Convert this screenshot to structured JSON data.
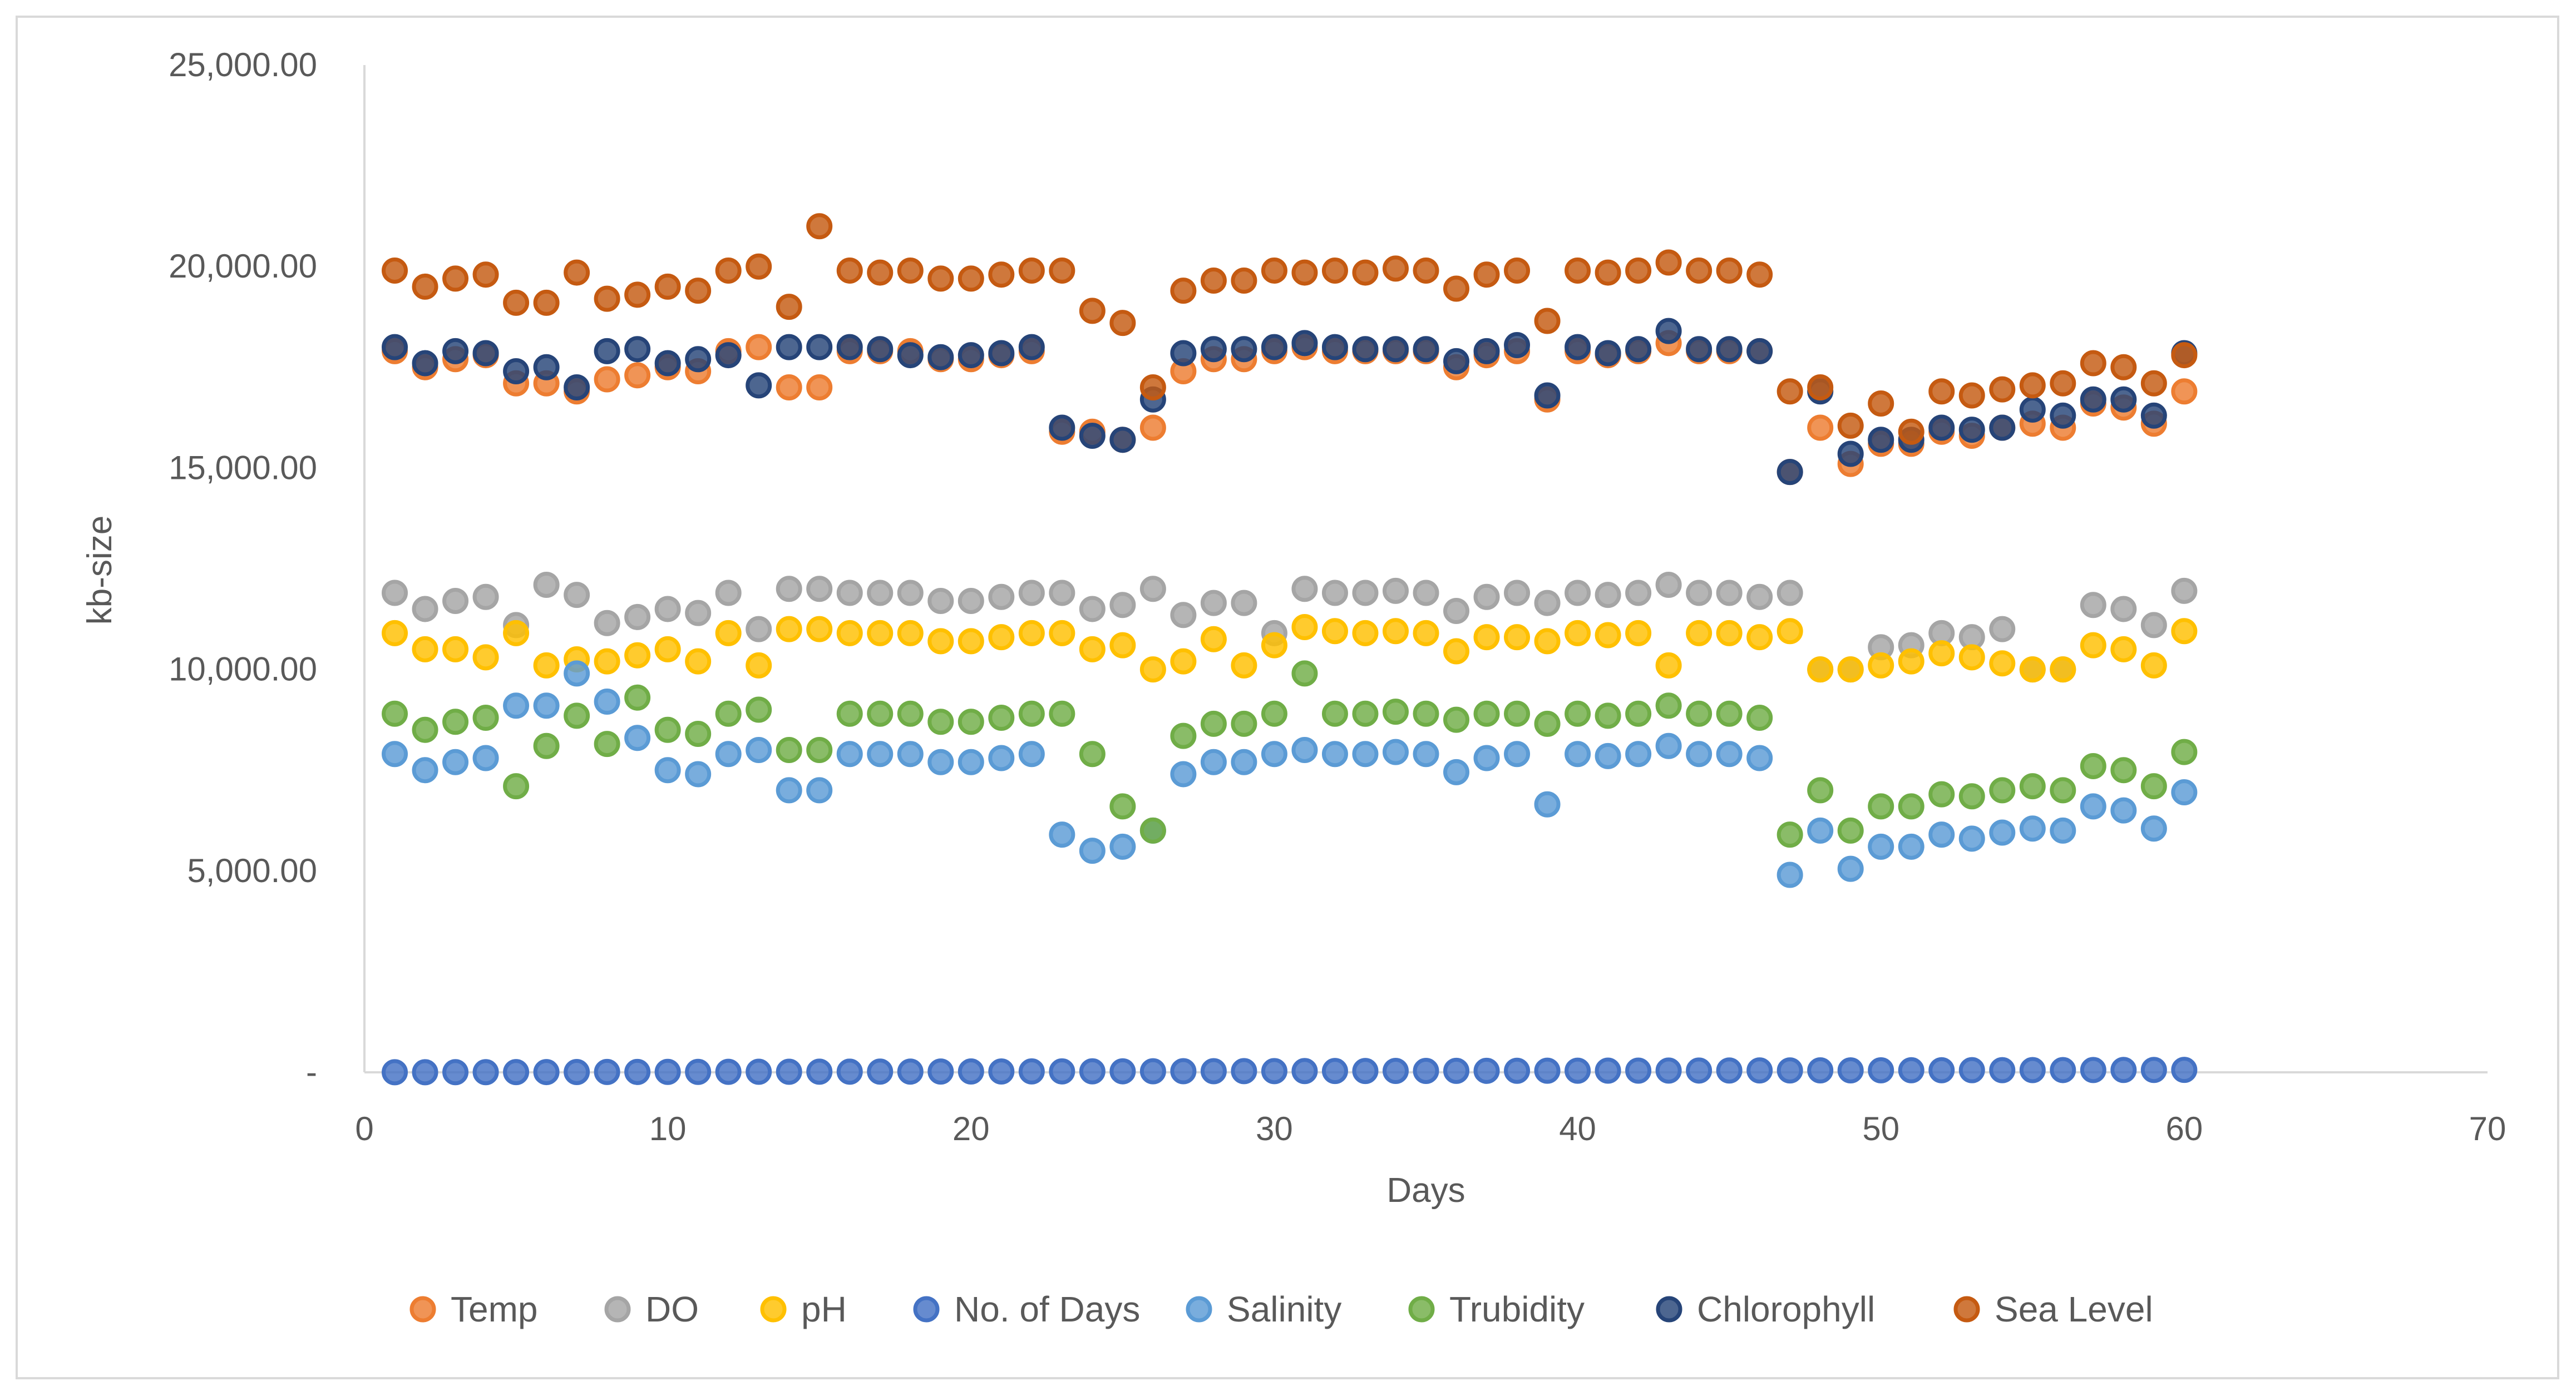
{
  "chart_data": {
    "type": "scatter",
    "title": "",
    "xlabel": "Days",
    "ylabel": "kb-size",
    "xlim": [
      0,
      70
    ],
    "ylim": [
      0,
      25000
    ],
    "x_ticks": [
      "0",
      "10",
      "20",
      "30",
      "40",
      "50",
      "60",
      "70"
    ],
    "y_ticks": [
      "-",
      "5,000.00",
      "10,000.00",
      "15,000.00",
      "20,000.00",
      "25,000.00"
    ],
    "grid": false,
    "legend_position": "bottom",
    "x": [
      1,
      2,
      3,
      4,
      5,
      6,
      7,
      8,
      9,
      10,
      11,
      12,
      13,
      14,
      15,
      16,
      17,
      18,
      19,
      20,
      21,
      22,
      23,
      24,
      25,
      26,
      27,
      28,
      29,
      30,
      31,
      32,
      33,
      34,
      35,
      36,
      37,
      38,
      39,
      40,
      41,
      42,
      43,
      44,
      45,
      46,
      47,
      48,
      49,
      50,
      51,
      52,
      53,
      54,
      55,
      56,
      57,
      58,
      59,
      60
    ],
    "series": [
      {
        "name": "Temp",
        "color": "#ED7D31",
        "values": [
          17900,
          17500,
          17700,
          17800,
          17100,
          17100,
          16900,
          17200,
          17300,
          17500,
          17400,
          17900,
          18000,
          17000,
          17000,
          17900,
          17900,
          17900,
          17700,
          17700,
          17800,
          17900,
          15900,
          15900,
          15700,
          16000,
          17400,
          17700,
          17700,
          17900,
          18000,
          17900,
          17900,
          17900,
          17900,
          17500,
          17800,
          17900,
          16700,
          17900,
          17800,
          17900,
          18100,
          17900,
          17900,
          17900,
          14900,
          16000,
          15100,
          15600,
          15600,
          15900,
          15800,
          16000,
          16100,
          16000,
          16600,
          16500,
          16100,
          16900
        ]
      },
      {
        "name": "DO",
        "color": "#A5A5A5",
        "values": [
          11900,
          11500,
          11700,
          11800,
          11100,
          12100,
          11850,
          11150,
          11300,
          11500,
          11400,
          11900,
          11000,
          12000,
          12000,
          11900,
          11900,
          11900,
          11700,
          11700,
          11800,
          11900,
          11900,
          11500,
          11600,
          12000,
          11350,
          11650,
          11650,
          10900,
          12000,
          11900,
          11900,
          11950,
          11900,
          11450,
          11800,
          11900,
          11650,
          11900,
          11850,
          11900,
          12100,
          11900,
          11900,
          11800,
          11900,
          10000,
          10000,
          10550,
          10600,
          10900,
          10800,
          11000,
          10000,
          10000,
          11600,
          11500,
          11100,
          11950
        ]
      },
      {
        "name": "pH",
        "color": "#FFC000",
        "values": [
          10900,
          10500,
          10500,
          10300,
          10900,
          10100,
          10250,
          10200,
          10350,
          10500,
          10200,
          10900,
          10100,
          11000,
          11000,
          10900,
          10900,
          10900,
          10700,
          10700,
          10800,
          10900,
          10900,
          10500,
          10600,
          10000,
          10200,
          10750,
          10100,
          10600,
          11050,
          10950,
          10900,
          10950,
          10900,
          10450,
          10800,
          10800,
          10700,
          10900,
          10850,
          10900,
          10100,
          10900,
          10900,
          10800,
          10950,
          10000,
          10000,
          10100,
          10200,
          10400,
          10300,
          10150,
          10000,
          10000,
          10600,
          10500,
          10100,
          10950
        ]
      },
      {
        "name": "No. of Days",
        "color": "#4472C4",
        "values": [
          1,
          2,
          3,
          4,
          5,
          6,
          7,
          8,
          9,
          10,
          11,
          12,
          13,
          14,
          15,
          16,
          17,
          18,
          19,
          20,
          21,
          22,
          23,
          24,
          25,
          26,
          27,
          28,
          29,
          30,
          31,
          32,
          33,
          34,
          35,
          36,
          37,
          38,
          39,
          40,
          41,
          42,
          43,
          44,
          45,
          46,
          47,
          48,
          49,
          50,
          51,
          52,
          53,
          54,
          55,
          56,
          57,
          58,
          59,
          60
        ]
      },
      {
        "name": "Salinity",
        "color": "#5B9BD5",
        "values": [
          7900,
          7500,
          7700,
          7800,
          9100,
          9100,
          9900,
          9200,
          8300,
          7500,
          7400,
          7900,
          8000,
          7000,
          7000,
          7900,
          7900,
          7900,
          7700,
          7700,
          7800,
          7900,
          5900,
          5500,
          5600,
          6000,
          7400,
          7700,
          7700,
          7900,
          8000,
          7900,
          7900,
          7950,
          7900,
          7450,
          7800,
          7900,
          6650,
          7900,
          7850,
          7900,
          8100,
          7900,
          7900,
          7800,
          4900,
          6000,
          5050,
          5600,
          5600,
          5900,
          5800,
          5950,
          6050,
          6000,
          6600,
          6500,
          6050,
          6950
        ]
      },
      {
        "name": "Trubidity",
        "color": "#70AD47",
        "values": [
          8900,
          8500,
          8700,
          8800,
          7100,
          8100,
          8850,
          8150,
          9300,
          8500,
          8400,
          8900,
          9000,
          8000,
          8000,
          8900,
          8900,
          8900,
          8700,
          8700,
          8800,
          8900,
          8900,
          7900,
          6600,
          6000,
          8350,
          8650,
          8650,
          8900,
          9900,
          8900,
          8900,
          8950,
          8900,
          8750,
          8900,
          8900,
          8650,
          8900,
          8850,
          8900,
          9100,
          8900,
          8900,
          8800,
          5900,
          7000,
          6000,
          6600,
          6600,
          6900,
          6850,
          7000,
          7100,
          7000,
          7600,
          7500,
          7100,
          7950
        ]
      },
      {
        "name": "Chlorophyll",
        "color": "#264478",
        "values": [
          18000,
          17600,
          17900,
          17850,
          17400,
          17500,
          17000,
          17900,
          17950,
          17600,
          17700,
          17800,
          17050,
          18000,
          18000,
          18000,
          17950,
          17800,
          17750,
          17800,
          17850,
          18000,
          16000,
          15800,
          15700,
          16700,
          17850,
          17950,
          17950,
          18000,
          18100,
          18000,
          17950,
          17950,
          17950,
          17650,
          17900,
          18050,
          16800,
          18000,
          17850,
          17950,
          18400,
          17950,
          17950,
          17900,
          14900,
          16900,
          15350,
          15700,
          15700,
          16000,
          15950,
          16000,
          16450,
          16300,
          16700,
          16700,
          16300,
          17850
        ]
      },
      {
        "name": "Sea Level",
        "color": "#C55A11",
        "values": [
          19900,
          19500,
          19700,
          19800,
          19100,
          19100,
          19850,
          19200,
          19300,
          19500,
          19400,
          19900,
          20000,
          19000,
          21000,
          19900,
          19850,
          19900,
          19700,
          19700,
          19800,
          19900,
          19900,
          18900,
          18600,
          17000,
          19400,
          19650,
          19650,
          19900,
          19850,
          19900,
          19850,
          19950,
          19900,
          19450,
          19800,
          19900,
          18650,
          19900,
          19850,
          19900,
          20100,
          19900,
          19900,
          19800,
          16900,
          17000,
          16050,
          16600,
          15900,
          16900,
          16800,
          16950,
          17050,
          17100,
          17600,
          17500,
          17100,
          17800
        ]
      }
    ]
  }
}
